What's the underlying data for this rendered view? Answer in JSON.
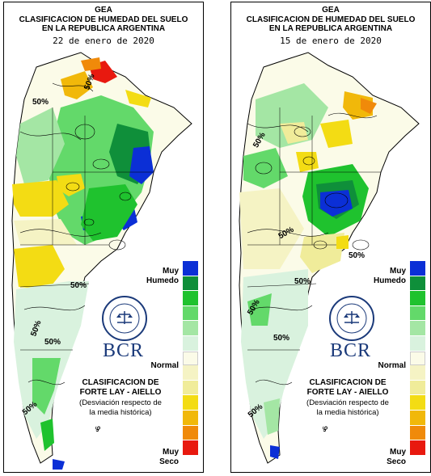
{
  "colors": {
    "muy_humedo": "#0b2fd6",
    "humedo_2": "#0f8f3a",
    "humedo_3": "#1fc22e",
    "humedo_4": "#63d96a",
    "humedo_5": "#a4e6a4",
    "normal_wet": "#d9f2de",
    "normal": "#fbfbe8",
    "normal_dry": "#f5f3c4",
    "seco_1": "#f0ec9a",
    "seco_2": "#f3dc14",
    "seco_3": "#f1b80a",
    "seco_4": "#f08a0a",
    "muy_seco": "#e8190f"
  },
  "panels": [
    {
      "title1": "GEA",
      "title2": "CLASIFICACION DE HUMEDAD DEL SUELO",
      "title3": "EN LA REPUBLICA ARGENTINA",
      "date": "22 de enero de 2020",
      "pct_labels": [
        "50%",
        "50%",
        "50%",
        "50%",
        "50%",
        "50%"
      ],
      "legend": {
        "muy_top": "Muy",
        "humedo": "Humedo",
        "normal": "Normal",
        "muy_bottom": "Muy",
        "seco": "Seco"
      },
      "bcr": "BCR",
      "seal_text": "BOLSA DE COMERCIO DE ROSARIO",
      "clasif1": "CLASIFICACION DE",
      "clasif2": "FORTE LAY - AIELLO",
      "clasif3": "(Desviación respecto de",
      "clasif4": "la media histórica)"
    },
    {
      "title1": "GEA",
      "title2": "CLASIFICACION DE HUMEDAD DEL SUELO",
      "title3": "EN LA REPUBLICA ARGENTINA",
      "date": "15 de enero de 2020",
      "pct_labels": [
        "50%",
        "50%",
        "50%",
        "50%",
        "50%",
        "50%",
        "50%"
      ],
      "legend": {
        "muy_top": "Muy",
        "humedo": "Humedo",
        "normal": "Normal",
        "muy_bottom": "Muy",
        "seco": "Seco"
      },
      "bcr": "BCR",
      "seal_text": "BOLSA DE COMERCIO DE ROSARIO",
      "clasif1": "CLASIFICACION DE",
      "clasif2": "FORTE LAY - AIELLO",
      "clasif3": "(Desviación respecto de",
      "clasif4": "la media histórica)"
    }
  ]
}
